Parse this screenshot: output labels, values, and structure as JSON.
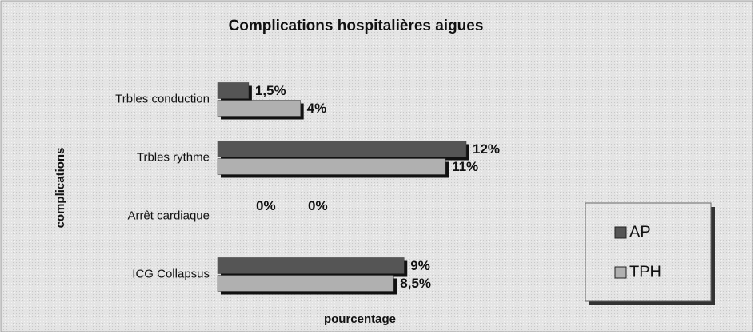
{
  "chart_data": {
    "type": "bar",
    "orientation": "horizontal",
    "title": "Complications hospitalières aigues",
    "x_label": "pourcentage",
    "y_label": "complications",
    "categories": [
      "Trbles conduction",
      "Trbles rythme",
      "Arrêt cardiaque",
      "ICG Collapsus"
    ],
    "series": [
      {
        "name": "AP",
        "color": "#555555",
        "values": [
          1.5,
          12,
          0,
          9
        ],
        "value_labels": [
          "1,5%",
          "12%",
          "0%",
          "9%"
        ]
      },
      {
        "name": "TPH",
        "color": "#b0b0b0",
        "values": [
          4,
          11,
          0,
          8.5
        ],
        "value_labels": [
          "4%",
          "11%",
          "0%",
          "8,5%"
        ]
      }
    ],
    "xlim": [
      0,
      12
    ],
    "legend": "right"
  }
}
